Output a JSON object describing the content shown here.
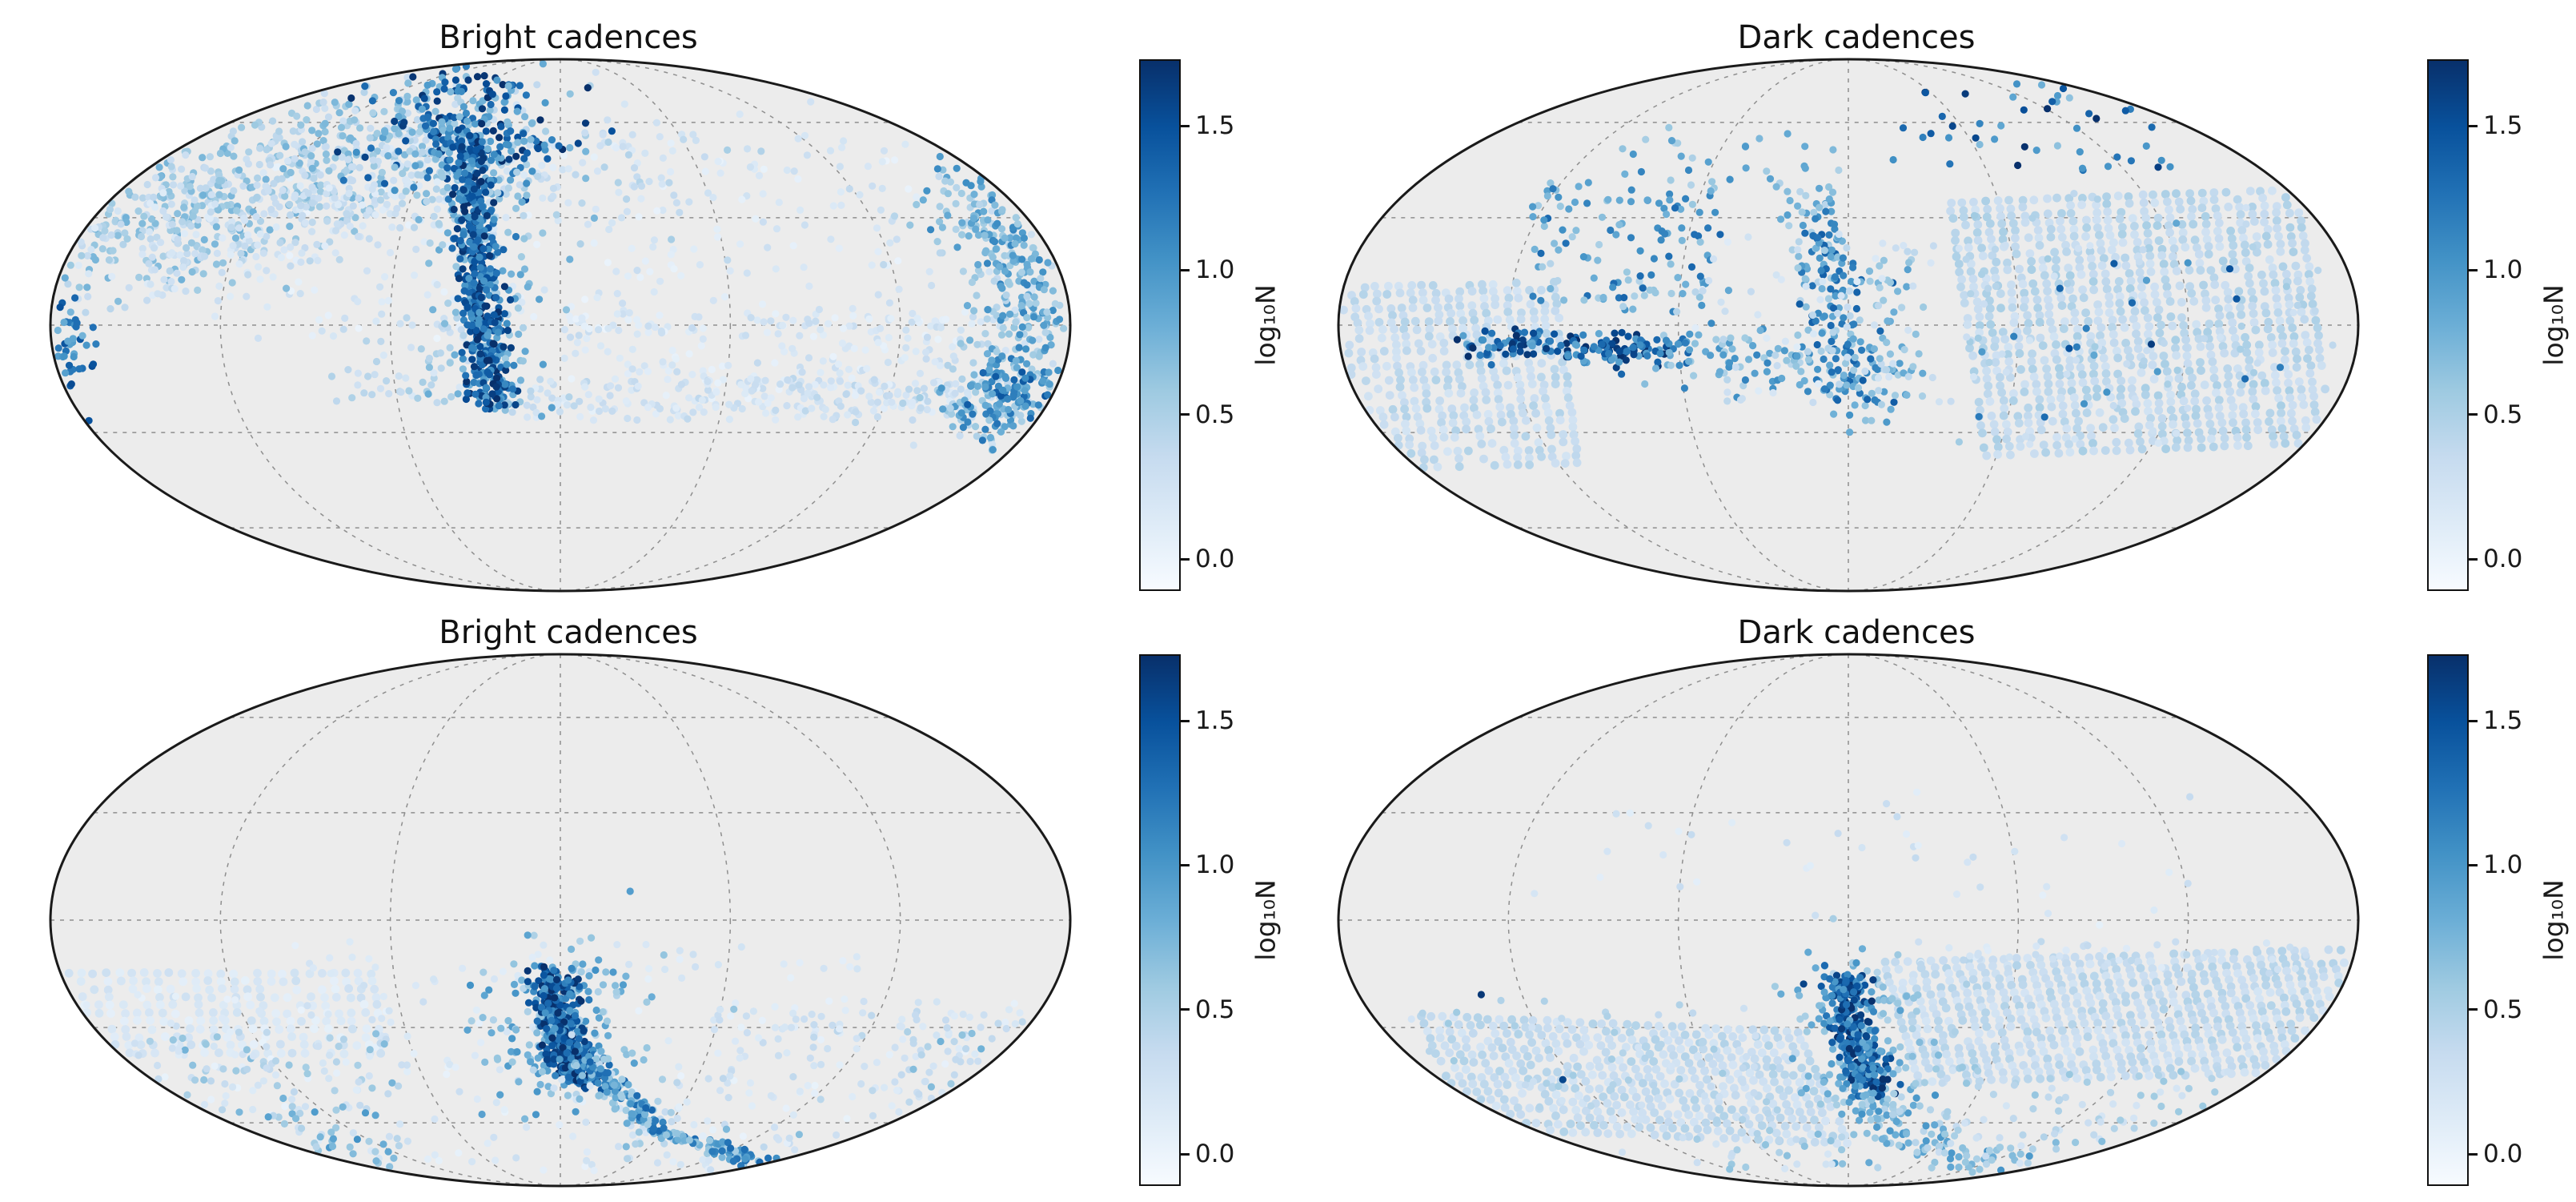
{
  "chart_data": {
    "type": "heatmap",
    "subtype": "mollweide_sky_maps",
    "layout": "2x2",
    "projection": "mollweide",
    "colorbar": {
      "label": "log₁₀N",
      "ticks": [
        1.5,
        1.0,
        0.5,
        0.0
      ],
      "vmin": -0.11,
      "vmax": 1.73,
      "value_scale_max": 1.75
    },
    "colormap": {
      "name": "Blues",
      "anchors": [
        "#f7fbff",
        "#deebf7",
        "#c6dbef",
        "#9ecae1",
        "#6baed6",
        "#4292c6",
        "#2171b5",
        "#08519c",
        "#08306b"
      ]
    },
    "graticule": {
      "meridians_deg": [
        -120,
        -60,
        0,
        60,
        120
      ],
      "parallels_deg": [
        -60,
        -30,
        0,
        30,
        60
      ],
      "line_style": "dashed",
      "color": "#8f8f8f"
    },
    "style": {
      "background": "#ffffff",
      "map_fill": "#ececec",
      "outline_color": "#1a1a1a",
      "title_color": "#111111"
    },
    "panels": [
      {
        "id": "top-left",
        "title": "Bright cadences",
        "clusters": [
          {
            "type": "uniform",
            "x0": -0.6,
            "x1": 0.75,
            "y0": -0.72,
            "y1": 0.05,
            "n": 260,
            "v0": 0.1,
            "v1": 0.4
          },
          {
            "type": "uniform",
            "x0": 0.0,
            "x1": 0.85,
            "y0": -0.05,
            "y1": 0.33,
            "n": 240,
            "v0": 0.12,
            "v1": 0.45
          },
          {
            "type": "uniform",
            "x0": -0.45,
            "x1": -0.12,
            "y0": -0.05,
            "y1": 0.3,
            "n": 70,
            "v0": 0.25,
            "v1": 0.6
          },
          {
            "type": "uniform",
            "x0": -0.1,
            "x1": 0.82,
            "y0": 0.2,
            "y1": 0.36,
            "n": 190,
            "v0": 0.2,
            "v1": 0.5
          },
          {
            "type": "curve",
            "pts": [
              [
                -0.92,
                -0.3
              ],
              [
                -0.55,
                -0.58
              ],
              [
                -0.27,
                -0.74
              ]
            ],
            "width": 0.12,
            "n": 650,
            "v0": 0.35,
            "v1": 0.85
          },
          {
            "type": "curve",
            "pts": [
              [
                -0.85,
                -0.2
              ],
              [
                -0.45,
                -0.42
              ],
              [
                -0.2,
                -0.55
              ]
            ],
            "width": 0.1,
            "n": 220,
            "v0": 0.2,
            "v1": 0.5
          },
          {
            "type": "gauss",
            "cx": -0.05,
            "cy": -0.58,
            "sx": 0.22,
            "sy": 0.14,
            "n": 140,
            "v0": 0.25,
            "v1": 0.6
          },
          {
            "type": "gauss",
            "cx": -0.17,
            "cy": -0.75,
            "sx": 0.1,
            "sy": 0.12,
            "n": 240,
            "v0": 0.7,
            "v1": 1.8
          },
          {
            "type": "curve",
            "pts": [
              [
                -0.19,
                -0.7
              ],
              [
                -0.16,
                -0.2
              ],
              [
                -0.13,
                0.3
              ]
            ],
            "width": 0.06,
            "n": 170,
            "v0": 0.5,
            "v1": 1.0
          },
          {
            "type": "curve",
            "pts": [
              [
                -0.19,
                -0.7
              ],
              [
                -0.16,
                -0.2
              ],
              [
                -0.13,
                0.3
              ]
            ],
            "width": 0.022,
            "n": 460,
            "v0": 1.0,
            "v1": 1.8
          },
          {
            "type": "curve",
            "pts": [
              [
                0.8,
                -0.52
              ],
              [
                0.92,
                -0.15
              ],
              [
                0.92,
                0.12
              ],
              [
                0.82,
                0.4
              ]
            ],
            "width": 0.1,
            "n": 150,
            "v0": 0.3,
            "v1": 0.7
          },
          {
            "type": "curve",
            "pts": [
              [
                0.8,
                -0.52
              ],
              [
                0.92,
                -0.15
              ],
              [
                0.92,
                0.12
              ],
              [
                0.82,
                0.4
              ]
            ],
            "width": 0.05,
            "n": 320,
            "v0": 0.5,
            "v1": 1.2
          },
          {
            "type": "gauss",
            "cx": 0.88,
            "cy": 0.25,
            "sx": 0.045,
            "sy": 0.06,
            "n": 70,
            "v0": 0.8,
            "v1": 1.5
          },
          {
            "type": "gauss",
            "cx": -0.965,
            "cy": 0.08,
            "sx": 0.025,
            "sy": 0.1,
            "n": 55,
            "v0": 0.8,
            "v1": 1.6
          }
        ]
      },
      {
        "id": "top-right",
        "title": "Dark cadences",
        "clusters": [
          {
            "type": "pgram",
            "ox": -1.02,
            "oy": -0.14,
            "e1": [
              0.44,
              -0.02
            ],
            "e2": [
              0.05,
              0.68
            ],
            "n1": 20,
            "n2": 26,
            "drop": 0.22,
            "v0": 0.3,
            "v1": 0.55
          },
          {
            "type": "pgram",
            "ox": 0.2,
            "oy": -0.46,
            "e1": [
              0.68,
              -0.05
            ],
            "e2": [
              0.07,
              0.95
            ],
            "n1": 30,
            "n2": 34,
            "drop": 0.12,
            "v0": 0.33,
            "v1": 0.6
          },
          {
            "type": "uniform",
            "x0": 0.2,
            "x1": 0.95,
            "y0": -0.5,
            "y1": 0.45,
            "n": 70,
            "v0": 0.3,
            "v1": 0.65
          },
          {
            "type": "uniform",
            "x0": 0.25,
            "x1": 0.85,
            "y0": -0.4,
            "y1": 0.35,
            "n": 22,
            "v0": 0.9,
            "v1": 1.7
          },
          {
            "type": "uniform",
            "x0": -0.62,
            "x1": -0.25,
            "y0": -0.55,
            "y1": -0.05,
            "n": 120,
            "v0": 0.5,
            "v1": 1.4
          },
          {
            "type": "curve",
            "pts": [
              [
                -0.72,
                0.07
              ],
              [
                -0.5,
                0.09
              ],
              [
                -0.33,
                0.1
              ]
            ],
            "width": 0.03,
            "n": 170,
            "v0": 0.9,
            "v1": 1.8
          },
          {
            "type": "curve",
            "pts": [
              [
                -0.33,
                0.1
              ],
              [
                -0.05,
                0.14
              ]
            ],
            "width": 0.07,
            "n": 90,
            "v0": 0.5,
            "v1": 1.2
          },
          {
            "type": "curve",
            "pts": [
              [
                -0.06,
                -0.45
              ],
              [
                -0.02,
                0.0
              ],
              [
                0.02,
                0.35
              ]
            ],
            "width": 0.04,
            "n": 200,
            "v0": 0.5,
            "v1": 1.5
          },
          {
            "type": "uniform",
            "x0": 0.04,
            "x1": 0.15,
            "y0": -0.3,
            "y1": 0.3,
            "n": 50,
            "v0": 0.4,
            "v1": 1.0
          },
          {
            "type": "uniform",
            "x0": -0.45,
            "x1": 0.0,
            "y0": -0.75,
            "y1": -0.45,
            "n": 45,
            "v0": 0.5,
            "v1": 1.2
          },
          {
            "type": "uniform",
            "x0": 0.08,
            "x1": 0.68,
            "y0": -0.93,
            "y1": -0.55,
            "n": 55,
            "v0": 0.7,
            "v1": 1.8
          },
          {
            "type": "uniform",
            "x0": -0.3,
            "x1": 0.18,
            "y0": -0.35,
            "y1": 0.3,
            "n": 60,
            "v0": 0.2,
            "v1": 0.5
          }
        ]
      },
      {
        "id": "bottom-left",
        "title": "Bright cadences",
        "clusters": [
          {
            "type": "pgram",
            "ox": -0.99,
            "oy": 0.2,
            "e1": [
              0.62,
              0.0
            ],
            "e2": [
              0.02,
              0.3
            ],
            "n1": 26,
            "n2": 11,
            "drop": 0.25,
            "v0": 0.15,
            "v1": 0.38
          },
          {
            "type": "uniform",
            "x0": -0.95,
            "x1": 0.9,
            "y0": 0.28,
            "y1": 0.95,
            "n": 260,
            "v0": 0.12,
            "v1": 0.4
          },
          {
            "type": "uniform",
            "x0": 0.3,
            "x1": 0.92,
            "y0": 0.33,
            "y1": 0.68,
            "n": 110,
            "v0": 0.2,
            "v1": 0.5
          },
          {
            "type": "uniform",
            "x0": -0.6,
            "x1": 0.6,
            "y0": 0.08,
            "y1": 0.25,
            "n": 45,
            "v0": 0.15,
            "v1": 0.4
          },
          {
            "type": "uniform",
            "x0": -0.9,
            "x1": -0.3,
            "y0": 0.42,
            "y1": 0.85,
            "n": 120,
            "v0": 0.3,
            "v1": 0.85
          },
          {
            "type": "uniform",
            "x0": -0.75,
            "x1": -0.3,
            "y0": 0.72,
            "y1": 0.95,
            "n": 70,
            "v0": 0.5,
            "v1": 1.15
          },
          {
            "type": "uniform",
            "x0": 0.68,
            "x1": 0.95,
            "y0": 0.4,
            "y1": 0.72,
            "n": 45,
            "v0": 0.4,
            "v1": 0.85
          },
          {
            "type": "gauss",
            "cx": 0.0,
            "cy": 0.42,
            "sx": 0.09,
            "sy": 0.17,
            "n": 170,
            "v0": 0.5,
            "v1": 1.1
          },
          {
            "type": "curve",
            "pts": [
              [
                -0.02,
                0.2
              ],
              [
                0.0,
                0.42
              ],
              [
                0.04,
                0.6
              ]
            ],
            "width": 0.025,
            "n": 330,
            "v0": 1.0,
            "v1": 1.8
          },
          {
            "type": "curve",
            "pts": [
              [
                0.05,
                0.52
              ],
              [
                0.2,
                0.8
              ],
              [
                0.42,
                0.92
              ],
              [
                0.64,
                0.88
              ],
              [
                0.77,
                0.73
              ]
            ],
            "width": 0.05,
            "n": 130,
            "v0": 0.3,
            "v1": 0.8
          },
          {
            "type": "curve",
            "pts": [
              [
                0.05,
                0.52
              ],
              [
                0.2,
                0.8
              ],
              [
                0.42,
                0.92
              ],
              [
                0.64,
                0.88
              ],
              [
                0.77,
                0.73
              ]
            ],
            "width": 0.015,
            "n": 300,
            "v0": 0.6,
            "v1": 1.4
          }
        ]
      },
      {
        "id": "bottom-right",
        "title": "Dark cadences",
        "clusters": [
          {
            "type": "pgram",
            "ox": 0.07,
            "oy": 0.16,
            "e1": [
              0.92,
              -0.05
            ],
            "e2": [
              0.07,
              0.45
            ],
            "n1": 40,
            "n2": 19,
            "drop": 0.08,
            "v0": 0.3,
            "v1": 0.55
          },
          {
            "type": "pgram",
            "ox": -0.84,
            "oy": 0.36,
            "e1": [
              0.74,
              0.06
            ],
            "e2": [
              0.1,
              0.42
            ],
            "n1": 34,
            "n2": 16,
            "drop": 0.1,
            "v0": 0.3,
            "v1": 0.55
          },
          {
            "type": "uniform",
            "x0": -0.9,
            "x1": -0.1,
            "y0": 0.3,
            "y1": 0.9,
            "n": 80,
            "v0": 0.3,
            "v1": 0.65
          },
          {
            "type": "uniform",
            "x0": 0.1,
            "x1": 0.9,
            "y0": 0.08,
            "y1": 0.2,
            "n": 45,
            "v0": 0.2,
            "v1": 0.5
          },
          {
            "type": "uniform",
            "x0": -0.7,
            "x1": 0.7,
            "y0": -0.5,
            "y1": 0.05,
            "n": 40,
            "v0": 0.15,
            "v1": 0.45
          },
          {
            "type": "uniform",
            "x0": 0.15,
            "x1": 0.75,
            "y0": 0.55,
            "y1": 0.8,
            "n": 70,
            "v0": 0.3,
            "v1": 0.7
          },
          {
            "type": "gauss",
            "cx": 0.02,
            "cy": 0.45,
            "sx": 0.07,
            "sy": 0.19,
            "n": 150,
            "v0": 0.5,
            "v1": 1.0
          },
          {
            "type": "curve",
            "pts": [
              [
                -0.02,
                0.2
              ],
              [
                0.01,
                0.45
              ],
              [
                0.05,
                0.66
              ]
            ],
            "width": 0.025,
            "n": 310,
            "v0": 0.9,
            "v1": 1.8
          },
          {
            "type": "curve",
            "pts": [
              [
                0.05,
                0.66
              ],
              [
                0.16,
                0.85
              ],
              [
                0.32,
                0.93
              ]
            ],
            "width": 0.04,
            "n": 110,
            "v0": 0.5,
            "v1": 1.1
          },
          {
            "type": "uniform",
            "x0": -0.3,
            "x1": 0.6,
            "y0": 0.8,
            "y1": 0.97,
            "n": 60,
            "v0": 0.3,
            "v1": 0.8
          },
          {
            "type": "points",
            "pts": [
              [
                -0.72,
                0.28,
                1.7
              ],
              [
                -0.56,
                0.6,
                1.6
              ],
              [
                0.3,
                0.95,
                1.3
              ],
              [
                0.75,
                0.65,
                0.8
              ],
              [
                0.88,
                0.58,
                0.6
              ]
            ]
          }
        ]
      }
    ]
  }
}
